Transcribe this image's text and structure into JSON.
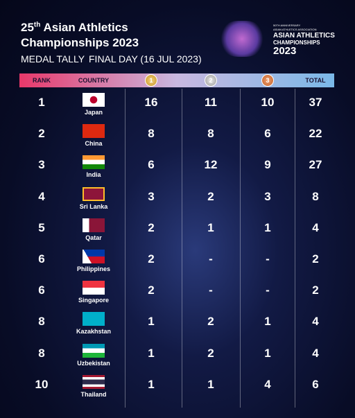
{
  "header": {
    "title_number": "25",
    "title_suffix": "th",
    "title_line1": "Asian Athletics",
    "title_line2": "Championships 2023",
    "subtitle": "MEDAL TALLY",
    "date": "FINAL DAY (16 JUL 2023)"
  },
  "logo": {
    "anniversary": "50TH ANNIVERSARY",
    "association": "ASIAN ATHLETICS ASSOCIATION",
    "line1": "ASIAN ATHLETICS",
    "line2": "CHAMPIONSHIPS",
    "year": "2023"
  },
  "table": {
    "columns": [
      "RANK",
      "COUNTRY",
      "1",
      "2",
      "3",
      "TOTAL"
    ],
    "rows": [
      [
        "1",
        "Japan",
        "16",
        "11",
        "10",
        "37"
      ],
      [
        "2",
        "China",
        "8",
        "8",
        "6",
        "22"
      ],
      [
        "3",
        "India",
        "6",
        "12",
        "9",
        "27"
      ],
      [
        "4",
        "Sri Lanka",
        "3",
        "2",
        "3",
        "8"
      ],
      [
        "5",
        "Qatar",
        "2",
        "1",
        "1",
        "4"
      ],
      [
        "6",
        "Philippines",
        "2",
        "-",
        "-",
        "2"
      ],
      [
        "6",
        "Singapore",
        "2",
        "-",
        "-",
        "2"
      ],
      [
        "8",
        "Kazakhstan",
        "1",
        "2",
        "1",
        "4"
      ],
      [
        "8",
        "Uzbekistan",
        "1",
        "2",
        "1",
        "4"
      ],
      [
        "10",
        "Thailand",
        "1",
        "1",
        "4",
        "6"
      ]
    ]
  }
}
